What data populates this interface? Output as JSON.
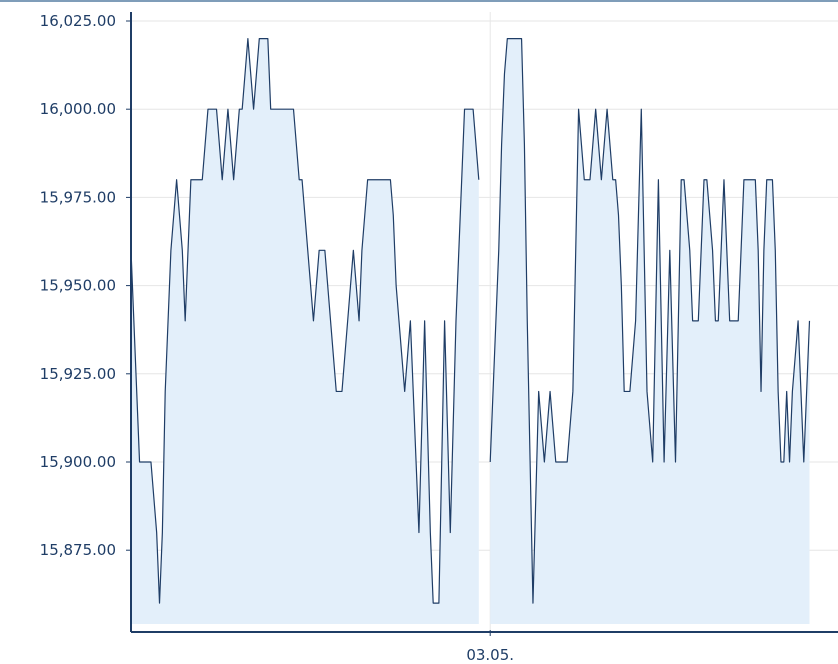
{
  "chart_data": {
    "type": "area",
    "title": "",
    "xlabel": "",
    "ylabel": "",
    "ylim": [
      15857,
      16028
    ],
    "y_ticks": [
      {
        "value": 15875,
        "label": "15,875.00"
      },
      {
        "value": 15900,
        "label": "15,900.00"
      },
      {
        "value": 15925,
        "label": "15,925.00"
      },
      {
        "value": 15950,
        "label": "15,950.00"
      },
      {
        "value": 15975,
        "label": "15,975.00"
      },
      {
        "value": 16000,
        "label": "16,000.00"
      },
      {
        "value": 16025,
        "label": "16,025.00"
      }
    ],
    "x_ticks": [
      {
        "index": 126,
        "label": "03.05."
      }
    ],
    "grid": true,
    "legend": "none",
    "colors": {
      "line": "#1f3d66",
      "fill": "#e3effa",
      "grid": "#e6e6e6",
      "axis": "#1f3d66"
    },
    "x_count": 249,
    "gaps": [
      [
        122,
        126
      ]
    ],
    "series": [
      {
        "values": [
          15960,
          15940,
          15920,
          15900,
          15900,
          15900,
          15900,
          15900,
          15890,
          15880,
          15860,
          15880,
          15920,
          15940,
          15960,
          15970,
          15980,
          15970,
          15960,
          15940,
          15960,
          15980,
          15980,
          15980,
          15980,
          15980,
          15990,
          16000,
          16000,
          16000,
          16000,
          15990,
          15980,
          15990,
          16000,
          15990,
          15980,
          15990,
          16000,
          16000,
          16010,
          16020,
          16010,
          16000,
          16010,
          16020,
          16020,
          16020,
          16020,
          16000,
          16000,
          16000,
          16000,
          16000,
          16000,
          16000,
          16000,
          16000,
          15990,
          15980,
          15980,
          15970,
          15960,
          15950,
          15940,
          15950,
          15960,
          15960,
          15960,
          15950,
          15940,
          15930,
          15920,
          15920,
          15920,
          15930,
          15940,
          15950,
          15960,
          15950,
          15940,
          15960,
          15970,
          15980,
          15980,
          15980,
          15980,
          15980,
          15980,
          15980,
          15980,
          15980,
          15970,
          15950,
          15940,
          15930,
          15920,
          15930,
          15940,
          15920,
          15900,
          15880,
          15910,
          15940,
          15910,
          15880,
          15860,
          15860,
          15860,
          15900,
          15940,
          15910,
          15880,
          15910,
          15940,
          15960,
          15980,
          16000,
          16000,
          16000,
          16000,
          15990,
          15980,
          15930,
          15900,
          15890,
          15900,
          15920,
          15940,
          15960,
          15990,
          16010,
          16020,
          16020,
          16020,
          16020,
          16020,
          16020,
          15990,
          15940,
          15900,
          15860,
          15890,
          15920,
          15910,
          15900,
          15910,
          15920,
          15910,
          15900,
          15900,
          15900,
          15900,
          15900,
          15910,
          15920,
          15960,
          16000,
          15990,
          15980,
          15980,
          15980,
          15990,
          16000,
          15990,
          15980,
          15990,
          16000,
          15990,
          15980,
          15980,
          15970,
          15950,
          15920,
          15920,
          15920,
          15930,
          15940,
          15970,
          16000,
          15960,
          15920,
          15910,
          15900,
          15940,
          15980,
          15940,
          15900,
          15930,
          15960,
          15930,
          15900,
          15940,
          15980,
          15980,
          15970,
          15960,
          15940,
          15940,
          15940,
          15960,
          15980,
          15980,
          15970,
          15960,
          15940,
          15940,
          15960,
          15980,
          15960,
          15940,
          15940,
          15940,
          15940,
          15960,
          15980,
          15980,
          15980,
          15980,
          15980,
          15960,
          15920,
          15960,
          15980,
          15980,
          15980,
          15960,
          15920,
          15900,
          15900,
          15920,
          15900,
          15920,
          15930,
          15940,
          15920,
          15900,
          15920,
          15940
        ]
      }
    ]
  }
}
